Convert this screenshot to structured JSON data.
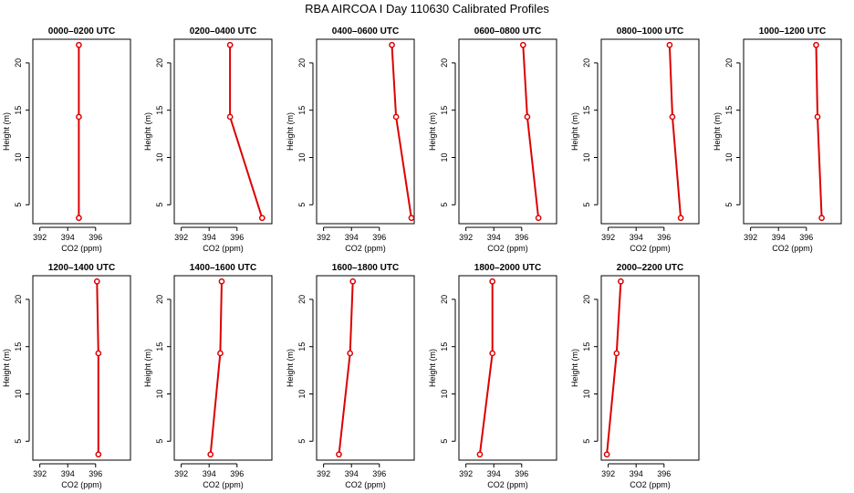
{
  "figure": {
    "title": "RBA AIRCOA I  Day 110630  Calibrated Profiles"
  },
  "colors": {
    "series": "#dd0000",
    "axes": "#000000",
    "background": "#ffffff"
  },
  "chart_data": [
    {
      "type": "line",
      "title": "0000–0200 UTC",
      "xlabel": "CO2 (ppm)",
      "ylabel": "Height (m)",
      "xlim": [
        391.5,
        398.5
      ],
      "ylim": [
        3,
        22.5
      ],
      "xticks": [
        392,
        394,
        396
      ],
      "yticks": [
        5,
        10,
        15,
        20
      ],
      "grid": false,
      "series": [
        {
          "x": [
            394.8,
            394.8,
            394.8
          ],
          "y": [
            3.6,
            14.3,
            21.9
          ]
        }
      ]
    },
    {
      "type": "line",
      "title": "0200–0400 UTC",
      "xlabel": "CO2 (ppm)",
      "ylabel": "Height (m)",
      "xlim": [
        391.5,
        398.5
      ],
      "ylim": [
        3,
        22.5
      ],
      "xticks": [
        392,
        394,
        396
      ],
      "yticks": [
        5,
        10,
        15,
        20
      ],
      "grid": false,
      "series": [
        {
          "x": [
            397.8,
            395.5,
            395.5
          ],
          "y": [
            3.6,
            14.3,
            21.9
          ]
        }
      ]
    },
    {
      "type": "line",
      "title": "0400–0600 UTC",
      "xlabel": "CO2 (ppm)",
      "ylabel": "Height (m)",
      "xlim": [
        391.5,
        398.5
      ],
      "ylim": [
        3,
        22.5
      ],
      "xticks": [
        392,
        394,
        396
      ],
      "yticks": [
        5,
        10,
        15,
        20
      ],
      "grid": false,
      "series": [
        {
          "x": [
            398.3,
            397.2,
            396.9
          ],
          "y": [
            3.6,
            14.3,
            21.9
          ]
        }
      ]
    },
    {
      "type": "line",
      "title": "0600–0800 UTC",
      "xlabel": "CO2 (ppm)",
      "ylabel": "Height (m)",
      "xlim": [
        391.5,
        398.5
      ],
      "ylim": [
        3,
        22.5
      ],
      "xticks": [
        392,
        394,
        396
      ],
      "yticks": [
        5,
        10,
        15,
        20
      ],
      "grid": false,
      "series": [
        {
          "x": [
            397.2,
            396.4,
            396.1
          ],
          "y": [
            3.6,
            14.3,
            21.9
          ]
        }
      ]
    },
    {
      "type": "line",
      "title": "0800–1000 UTC",
      "xlabel": "CO2 (ppm)",
      "ylabel": "Height (m)",
      "xlim": [
        391.5,
        398.5
      ],
      "ylim": [
        3,
        22.5
      ],
      "xticks": [
        392,
        394,
        396
      ],
      "yticks": [
        5,
        10,
        15,
        20
      ],
      "grid": false,
      "series": [
        {
          "x": [
            397.2,
            396.6,
            396.4
          ],
          "y": [
            3.6,
            14.3,
            21.9
          ]
        }
      ]
    },
    {
      "type": "line",
      "title": "1000–1200 UTC",
      "xlabel": "CO2 (ppm)",
      "ylabel": "Height (m)",
      "xlim": [
        391.5,
        398.5
      ],
      "ylim": [
        3,
        22.5
      ],
      "xticks": [
        392,
        394,
        396
      ],
      "yticks": [
        5,
        10,
        15,
        20
      ],
      "grid": false,
      "series": [
        {
          "x": [
            397.1,
            396.8,
            396.7
          ],
          "y": [
            3.6,
            14.3,
            21.9
          ]
        }
      ]
    },
    {
      "type": "line",
      "title": "1200–1400 UTC",
      "xlabel": "CO2 (ppm)",
      "ylabel": "Height (m)",
      "xlim": [
        391.5,
        398.5
      ],
      "ylim": [
        3,
        22.5
      ],
      "xticks": [
        392,
        394,
        396
      ],
      "yticks": [
        5,
        10,
        15,
        20
      ],
      "grid": false,
      "series": [
        {
          "x": [
            396.2,
            396.2,
            396.1
          ],
          "y": [
            3.6,
            14.3,
            21.9
          ]
        }
      ]
    },
    {
      "type": "line",
      "title": "1400–1600 UTC",
      "xlabel": "CO2 (ppm)",
      "ylabel": "Height (m)",
      "xlim": [
        391.5,
        398.5
      ],
      "ylim": [
        3,
        22.5
      ],
      "xticks": [
        392,
        394,
        396
      ],
      "yticks": [
        5,
        10,
        15,
        20
      ],
      "grid": false,
      "series": [
        {
          "x": [
            394.1,
            394.8,
            394.9
          ],
          "y": [
            3.6,
            14.3,
            21.9
          ]
        }
      ]
    },
    {
      "type": "line",
      "title": "1600–1800 UTC",
      "xlabel": "CO2 (ppm)",
      "ylabel": "Height (m)",
      "xlim": [
        391.5,
        398.5
      ],
      "ylim": [
        3,
        22.5
      ],
      "xticks": [
        392,
        394,
        396
      ],
      "yticks": [
        5,
        10,
        15,
        20
      ],
      "grid": false,
      "series": [
        {
          "x": [
            393.1,
            393.9,
            394.1
          ],
          "y": [
            3.6,
            14.3,
            21.9
          ]
        }
      ]
    },
    {
      "type": "line",
      "title": "1800–2000 UTC",
      "xlabel": "CO2 (ppm)",
      "ylabel": "Height (m)",
      "xlim": [
        391.5,
        398.5
      ],
      "ylim": [
        3,
        22.5
      ],
      "xticks": [
        392,
        394,
        396
      ],
      "yticks": [
        5,
        10,
        15,
        20
      ],
      "grid": false,
      "series": [
        {
          "x": [
            393.0,
            393.9,
            393.9
          ],
          "y": [
            3.6,
            14.3,
            21.9
          ]
        }
      ]
    },
    {
      "type": "line",
      "title": "2000–2200 UTC",
      "xlabel": "CO2 (ppm)",
      "ylabel": "Height (m)",
      "xlim": [
        391.5,
        398.5
      ],
      "ylim": [
        3,
        22.5
      ],
      "xticks": [
        392,
        394,
        396
      ],
      "yticks": [
        5,
        10,
        15,
        20
      ],
      "grid": false,
      "series": [
        {
          "x": [
            391.9,
            392.6,
            392.9
          ],
          "y": [
            3.6,
            14.3,
            21.9
          ]
        }
      ]
    }
  ]
}
